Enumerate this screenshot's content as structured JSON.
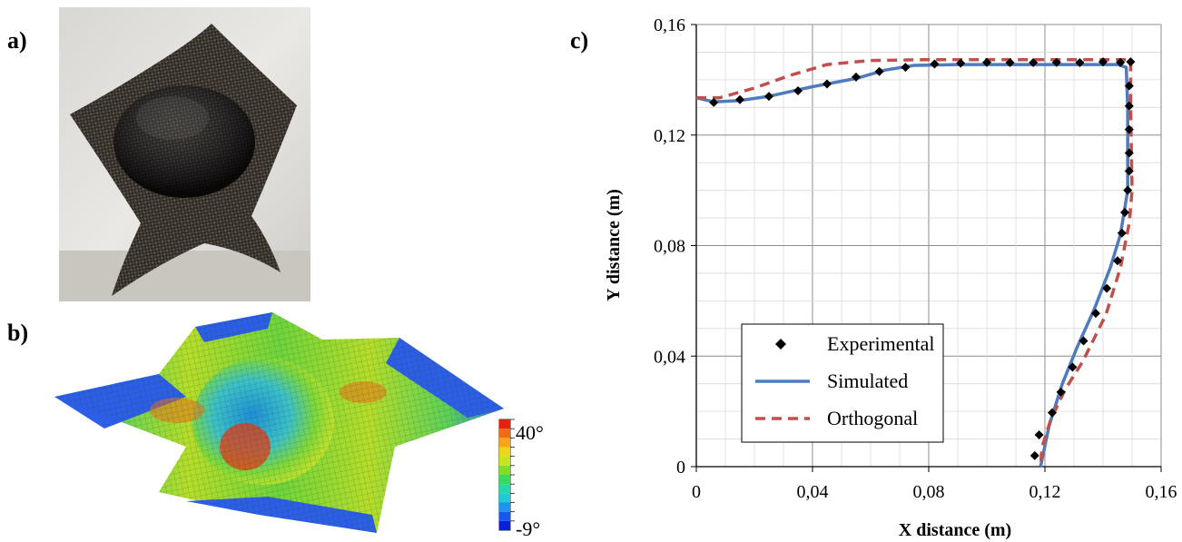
{
  "panels": {
    "a": "a)",
    "b": "b)",
    "c": "c)"
  },
  "colorbar": {
    "max_label": "40°",
    "min_label": "-9°",
    "colors": [
      "#0a1fd6",
      "#1657f0",
      "#1e93f0",
      "#20c8d8",
      "#25d8a6",
      "#38da5d",
      "#7ede2a",
      "#c4e51f",
      "#ecd51b",
      "#f4a51a",
      "#f26a16",
      "#e2230e"
    ]
  },
  "chart_data": {
    "type": "scatter",
    "xlabel": "X distance (m)",
    "ylabel": "Y distance (m)",
    "xlim": [
      0,
      0.16
    ],
    "ylim": [
      0,
      0.16
    ],
    "x_ticks": [
      "0",
      "0,04",
      "0,08",
      "0,12",
      "0,16"
    ],
    "y_ticks": [
      "0",
      "0,04",
      "0,08",
      "0,12",
      "0,16"
    ],
    "x_tick_values": [
      0,
      0.04,
      0.08,
      0.12,
      0.16
    ],
    "y_tick_values": [
      0,
      0.04,
      0.08,
      0.12,
      0.16
    ],
    "grid": "on",
    "legend_position": "bottom-left",
    "series": [
      {
        "name": "Experimental",
        "style": "diamond-markers",
        "color": "#000000",
        "points": [
          [
            0.006,
            0.1318
          ],
          [
            0.015,
            0.1328
          ],
          [
            0.025,
            0.134
          ],
          [
            0.035,
            0.136
          ],
          [
            0.045,
            0.1385
          ],
          [
            0.055,
            0.141
          ],
          [
            0.063,
            0.143
          ],
          [
            0.072,
            0.1445
          ],
          [
            0.082,
            0.1457
          ],
          [
            0.091,
            0.146
          ],
          [
            0.1,
            0.1463
          ],
          [
            0.108,
            0.1462
          ],
          [
            0.116,
            0.1462
          ],
          [
            0.124,
            0.1463
          ],
          [
            0.132,
            0.1462
          ],
          [
            0.14,
            0.1465
          ],
          [
            0.146,
            0.1463
          ],
          [
            0.1495,
            0.1465
          ],
          [
            0.149,
            0.1378
          ],
          [
            0.149,
            0.1305
          ],
          [
            0.149,
            0.122
          ],
          [
            0.149,
            0.1135
          ],
          [
            0.149,
            0.107
          ],
          [
            0.1485,
            0.1
          ],
          [
            0.1475,
            0.092
          ],
          [
            0.1465,
            0.0845
          ],
          [
            0.145,
            0.0745
          ],
          [
            0.1413,
            0.0645
          ],
          [
            0.1375,
            0.0555
          ],
          [
            0.1333,
            0.0455
          ],
          [
            0.1295,
            0.036
          ],
          [
            0.1255,
            0.027
          ],
          [
            0.1225,
            0.0195
          ],
          [
            0.118,
            0.0115
          ],
          [
            0.1165,
            0.004
          ]
        ]
      },
      {
        "name": "Simulated",
        "style": "solid-line",
        "color": "#4f7bbd",
        "points": [
          [
            0,
            0.1335
          ],
          [
            0.006,
            0.132
          ],
          [
            0.015,
            0.1325
          ],
          [
            0.025,
            0.134
          ],
          [
            0.04,
            0.1375
          ],
          [
            0.055,
            0.1405
          ],
          [
            0.065,
            0.1435
          ],
          [
            0.075,
            0.1452
          ],
          [
            0.09,
            0.1455
          ],
          [
            0.12,
            0.1455
          ],
          [
            0.145,
            0.1455
          ],
          [
            0.148,
            0.1445
          ],
          [
            0.1485,
            0.13
          ],
          [
            0.1485,
            0.1
          ],
          [
            0.146,
            0.084
          ],
          [
            0.1425,
            0.072
          ],
          [
            0.137,
            0.057
          ],
          [
            0.131,
            0.043
          ],
          [
            0.126,
            0.03
          ],
          [
            0.1215,
            0.015
          ],
          [
            0.1185,
            0
          ]
        ]
      },
      {
        "name": "Orthogonal",
        "style": "dashed-line",
        "color": "#c0504d",
        "points": [
          [
            0,
            0.1335
          ],
          [
            0.008,
            0.1335
          ],
          [
            0.02,
            0.137
          ],
          [
            0.032,
            0.1415
          ],
          [
            0.045,
            0.1455
          ],
          [
            0.06,
            0.147
          ],
          [
            0.08,
            0.1473
          ],
          [
            0.12,
            0.1473
          ],
          [
            0.1495,
            0.1473
          ],
          [
            0.1495,
            0.13
          ],
          [
            0.15,
            0.1
          ],
          [
            0.149,
            0.088
          ],
          [
            0.146,
            0.072
          ],
          [
            0.141,
            0.055
          ],
          [
            0.133,
            0.038
          ],
          [
            0.127,
            0.028
          ],
          [
            0.122,
            0.017
          ],
          [
            0.119,
            0.007
          ],
          [
            0.1185,
            0
          ]
        ]
      }
    ]
  }
}
